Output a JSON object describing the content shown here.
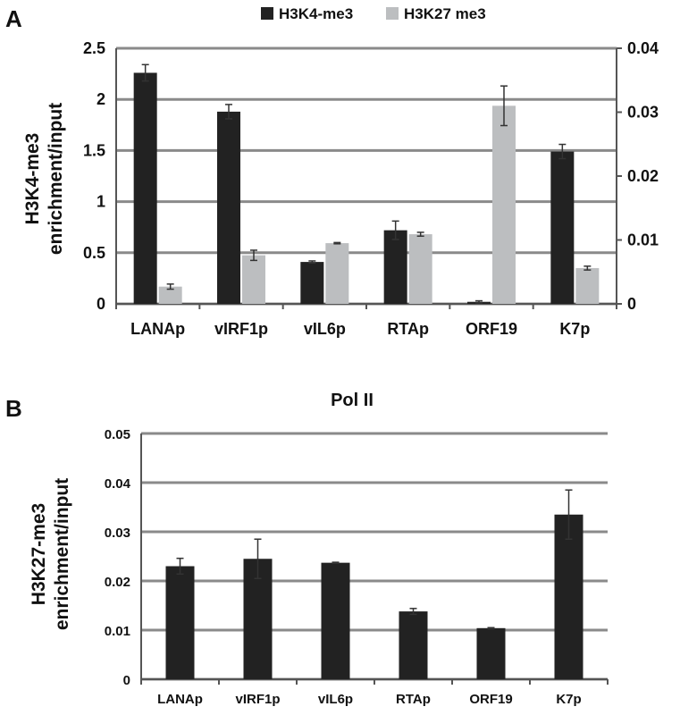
{
  "panels": {
    "a": {
      "letter": "A"
    },
    "b": {
      "letter": "B"
    }
  },
  "colors": {
    "series1": "#222222",
    "series2": "#bcbec0",
    "axis": "#555555",
    "grid": "#8a8a8a",
    "error_bar": "#333333"
  },
  "chart_data": [
    {
      "type": "bar",
      "panel": "A",
      "title": "",
      "categories": [
        "LANAp",
        "vIRF1p",
        "vIL6p",
        "RTAp",
        "ORF19",
        "K7p"
      ],
      "series": [
        {
          "name": "H3K4-me3",
          "axis": "left",
          "values": [
            2.26,
            1.88,
            0.41,
            0.72,
            0.02,
            1.49
          ],
          "errors": [
            0.08,
            0.07,
            0.01,
            0.09,
            0.01,
            0.07
          ]
        },
        {
          "name": "H3K27 me3",
          "axis": "right",
          "values": [
            0.0027,
            0.0076,
            0.0095,
            0.0109,
            0.031,
            0.0056
          ],
          "errors": [
            0.0004,
            0.0008,
            0.0001,
            0.0003,
            0.0031,
            0.0003
          ]
        }
      ],
      "ylabel_lines": [
        "H3K4-me3",
        "enrichment/input"
      ],
      "ylim": [
        0,
        2.5
      ],
      "y_ticks": [
        "0",
        "0.5",
        "1",
        "1.5",
        "2",
        "2.5"
      ],
      "y2lim": [
        0,
        0.04
      ],
      "y2_ticks": [
        "0",
        "0.01",
        "0.02",
        "0.03",
        "0.04"
      ],
      "legend_position": "top",
      "grid": true
    },
    {
      "type": "bar",
      "panel": "B",
      "title": "Pol II",
      "categories": [
        "LANAp",
        "vIRF1p",
        "vIL6p",
        "RTAp",
        "ORF19",
        "K7p"
      ],
      "series": [
        {
          "values": [
            0.023,
            0.0245,
            0.0237,
            0.0138,
            0.0104,
            0.0335
          ],
          "errors": [
            0.0016,
            0.004,
            0.0001,
            0.0006,
            0.0001,
            0.005
          ]
        }
      ],
      "ylabel_lines": [
        "H3K27-me3",
        "enrichment/input"
      ],
      "ylim": [
        0,
        0.05
      ],
      "y_ticks": [
        "0",
        "0.01",
        "0.02",
        "0.03",
        "0.04",
        "0.05"
      ],
      "grid": true
    }
  ]
}
